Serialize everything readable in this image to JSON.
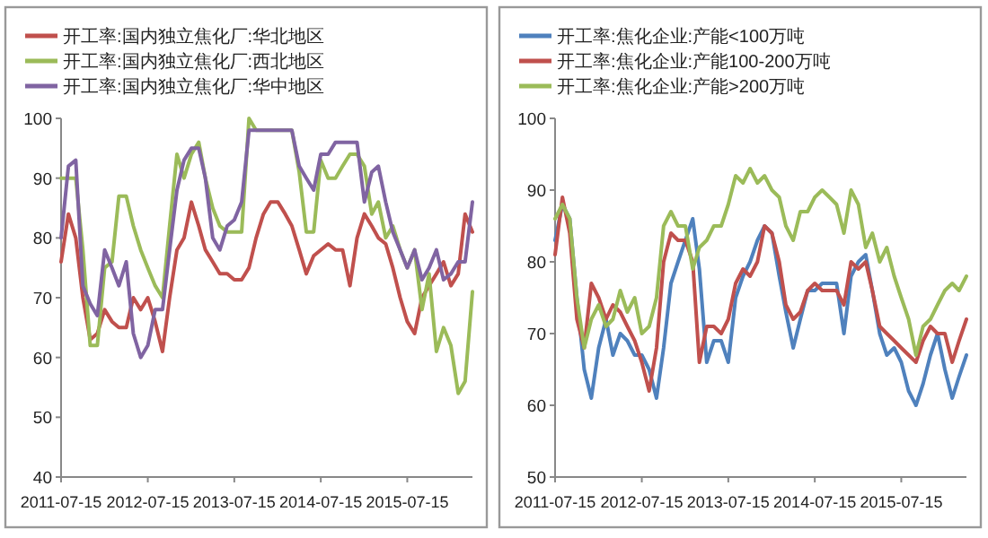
{
  "chart_data": [
    {
      "type": "line",
      "legend": "top",
      "x": [
        "2011-07-15",
        "2011-08-15",
        "2011-09-15",
        "2011-10-15",
        "2011-11-15",
        "2011-12-15",
        "2012-01-15",
        "2012-02-15",
        "2012-03-15",
        "2012-04-15",
        "2012-05-15",
        "2012-06-15",
        "2012-07-15",
        "2012-08-15",
        "2012-09-15",
        "2012-10-15",
        "2012-11-15",
        "2012-12-15",
        "2013-01-15",
        "2013-02-15",
        "2013-03-15",
        "2013-04-15",
        "2013-05-15",
        "2013-06-15",
        "2013-07-15",
        "2013-08-15",
        "2013-09-15",
        "2013-10-15",
        "2013-11-15",
        "2013-12-15",
        "2014-01-15",
        "2014-02-15",
        "2014-03-15",
        "2014-04-15",
        "2014-05-15",
        "2014-06-15",
        "2014-07-15",
        "2014-08-15",
        "2014-09-15",
        "2014-10-15",
        "2014-11-15",
        "2014-12-15",
        "2015-01-15",
        "2015-02-15",
        "2015-03-15",
        "2015-04-15",
        "2015-05-15",
        "2015-06-15",
        "2015-07-15",
        "2015-08-15",
        "2015-09-15",
        "2015-10-15",
        "2015-11-15",
        "2015-12-15",
        "2016-01-15",
        "2016-02-15",
        "2016-03-15",
        "2016-04-15"
      ],
      "xlim": [
        "2011-07-15",
        "2016-04-15"
      ],
      "xticks": [
        "2011-07-15",
        "2012-07-15",
        "2013-07-15",
        "2014-07-15",
        "2015-07-15"
      ],
      "ylim": [
        40,
        100
      ],
      "yticks": [
        40,
        50,
        60,
        70,
        80,
        90,
        100
      ],
      "series": [
        {
          "name": "开工率:国内独立焦化厂:华北地区",
          "color": "#c0504d",
          "values": [
            76,
            84,
            80,
            70,
            63,
            64,
            68,
            66,
            65,
            65,
            70,
            68,
            70,
            66,
            61,
            70,
            78,
            80,
            86,
            82,
            78,
            76,
            74,
            74,
            73,
            73,
            75,
            80,
            84,
            86,
            86,
            84,
            82,
            78,
            74,
            77,
            78,
            79,
            78,
            78,
            72,
            80,
            84,
            82,
            80,
            79,
            75,
            70,
            66,
            64,
            70,
            72,
            74,
            76,
            72,
            74,
            84,
            81
          ]
        },
        {
          "name": "开工率:国内独立焦化厂:西北地区",
          "color": "#9bbb59",
          "values": [
            90,
            90,
            90,
            78,
            62,
            62,
            75,
            76,
            87,
            87,
            82,
            78,
            75,
            72,
            70,
            82,
            94,
            90,
            94,
            96,
            90,
            85,
            82,
            81,
            81,
            81,
            100,
            98,
            98,
            98,
            98,
            98,
            98,
            91,
            81,
            81,
            93,
            90,
            90,
            92,
            94,
            94,
            92,
            84,
            86,
            80,
            82,
            78,
            75,
            78,
            68,
            74,
            61,
            65,
            62,
            54,
            56,
            71
          ]
        },
        {
          "name": "开工率:国内独立焦化厂:华中地区",
          "color": "#8064a2",
          "values": [
            80,
            92,
            93,
            72,
            69,
            67,
            78,
            75,
            72,
            76,
            64,
            60,
            62,
            68,
            68,
            78,
            88,
            93,
            95,
            95,
            90,
            80,
            78,
            82,
            83,
            86,
            98,
            98,
            98,
            98,
            98,
            98,
            98,
            92,
            90,
            88,
            94,
            94,
            96,
            96,
            96,
            96,
            86,
            91,
            92,
            86,
            81,
            78,
            75,
            78,
            73,
            75,
            78,
            73,
            74,
            76,
            76,
            86
          ]
        }
      ]
    },
    {
      "type": "line",
      "legend": "top",
      "x": [
        "2011-07-15",
        "2011-08-15",
        "2011-09-15",
        "2011-10-15",
        "2011-11-15",
        "2011-12-15",
        "2012-01-15",
        "2012-02-15",
        "2012-03-15",
        "2012-04-15",
        "2012-05-15",
        "2012-06-15",
        "2012-07-15",
        "2012-08-15",
        "2012-09-15",
        "2012-10-15",
        "2012-11-15",
        "2012-12-15",
        "2013-01-15",
        "2013-02-15",
        "2013-03-15",
        "2013-04-15",
        "2013-05-15",
        "2013-06-15",
        "2013-07-15",
        "2013-08-15",
        "2013-09-15",
        "2013-10-15",
        "2013-11-15",
        "2013-12-15",
        "2014-01-15",
        "2014-02-15",
        "2014-03-15",
        "2014-04-15",
        "2014-05-15",
        "2014-06-15",
        "2014-07-15",
        "2014-08-15",
        "2014-09-15",
        "2014-10-15",
        "2014-11-15",
        "2014-12-15",
        "2015-01-15",
        "2015-02-15",
        "2015-03-15",
        "2015-04-15",
        "2015-05-15",
        "2015-06-15",
        "2015-07-15",
        "2015-08-15",
        "2015-09-15",
        "2015-10-15",
        "2015-11-15",
        "2015-12-15",
        "2016-01-15",
        "2016-02-15",
        "2016-03-15",
        "2016-04-15"
      ],
      "xlim": [
        "2011-07-15",
        "2016-04-15"
      ],
      "xticks": [
        "2011-07-15",
        "2012-07-15",
        "2013-07-15",
        "2014-07-15",
        "2015-07-15"
      ],
      "ylim": [
        50,
        100
      ],
      "yticks": [
        50,
        60,
        70,
        80,
        90,
        100
      ],
      "series": [
        {
          "name": "开工率:焦化企业:产能<100万吨",
          "color": "#4f81bd",
          "values": [
            83,
            88,
            86,
            75,
            65,
            61,
            68,
            72,
            67,
            70,
            69,
            67,
            67,
            65,
            61,
            68,
            77,
            80,
            83,
            86,
            79,
            66,
            69,
            69,
            66,
            75,
            78,
            80,
            83,
            85,
            84,
            78,
            73,
            68,
            72,
            76,
            76,
            77,
            77,
            77,
            70,
            78,
            80,
            81,
            76,
            70,
            67,
            68,
            66,
            62,
            60,
            63,
            67,
            70,
            65,
            61,
            64,
            67
          ]
        },
        {
          "name": "开工率:焦化企业:产能100-200万吨",
          "color": "#c0504d",
          "values": [
            81,
            89,
            84,
            72,
            68,
            77,
            75,
            72,
            74,
            73,
            71,
            69,
            66,
            62,
            68,
            80,
            84,
            83,
            83,
            80,
            66,
            71,
            71,
            70,
            72,
            77,
            79,
            78,
            80,
            85,
            84,
            80,
            74,
            72,
            73,
            76,
            77,
            76,
            76,
            76,
            74,
            80,
            79,
            80,
            76,
            71,
            70,
            69,
            68,
            67,
            66,
            69,
            71,
            70,
            70,
            66,
            69,
            72
          ]
        },
        {
          "name": "开工率:焦化企业:产能>200万吨",
          "color": "#9bbb59",
          "values": [
            86,
            88,
            86,
            75,
            68,
            72,
            74,
            71,
            72,
            76,
            73,
            75,
            70,
            71,
            75,
            85,
            87,
            85,
            85,
            79,
            82,
            83,
            85,
            85,
            88,
            92,
            91,
            93,
            91,
            92,
            90,
            89,
            85,
            83,
            87,
            87,
            89,
            90,
            89,
            88,
            84,
            90,
            88,
            82,
            84,
            80,
            82,
            78,
            75,
            72,
            67,
            71,
            72,
            74,
            76,
            77,
            76,
            78
          ]
        }
      ]
    }
  ]
}
